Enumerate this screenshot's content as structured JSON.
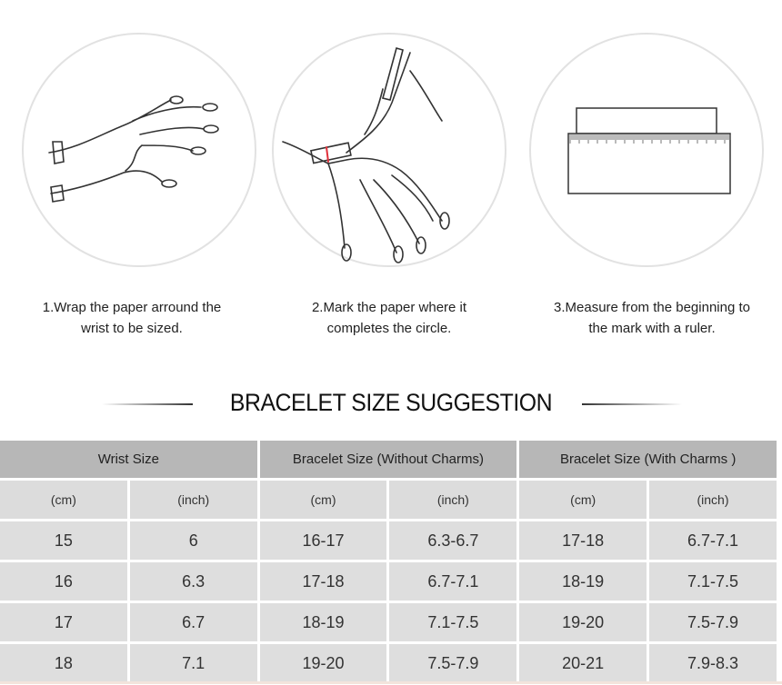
{
  "steps": [
    {
      "line1": "1.Wrap the paper arround the",
      "line2": "wrist to be sized.",
      "icon": "hand-wrap-illustration"
    },
    {
      "line1": "2.Mark the paper where it",
      "line2": "completes the circle.",
      "icon": "hand-mark-illustration"
    },
    {
      "line1": "3.Measure from the beginning to",
      "line2": "the mark with a ruler.",
      "icon": "ruler-illustration"
    }
  ],
  "title": "BRACELET SIZE SUGGESTION",
  "table": {
    "groups": [
      "Wrist Size",
      "Bracelet Size (Without Charms)",
      "Bracelet Size (With Charms )"
    ],
    "units": [
      "(cm)",
      "(inch)",
      "(cm)",
      "(inch)",
      "(cm)",
      "(inch)"
    ],
    "rows": [
      [
        "15",
        "6",
        "16-17",
        "6.3-6.7",
        "17-18",
        "6.7-7.1"
      ],
      [
        "16",
        "6.3",
        "17-18",
        "6.7-7.1",
        "18-19",
        "7.1-7.5"
      ],
      [
        "17",
        "6.7",
        "18-19",
        "7.1-7.5",
        "19-20",
        "7.5-7.9"
      ],
      [
        "18",
        "7.1",
        "19-20",
        "7.5-7.9",
        "20-21",
        "7.9-8.3"
      ]
    ]
  },
  "colors": {
    "header": "#b7b7b7",
    "subheader": "#dcdcdc",
    "row": "#dedede",
    "mark": "#e0303a"
  }
}
